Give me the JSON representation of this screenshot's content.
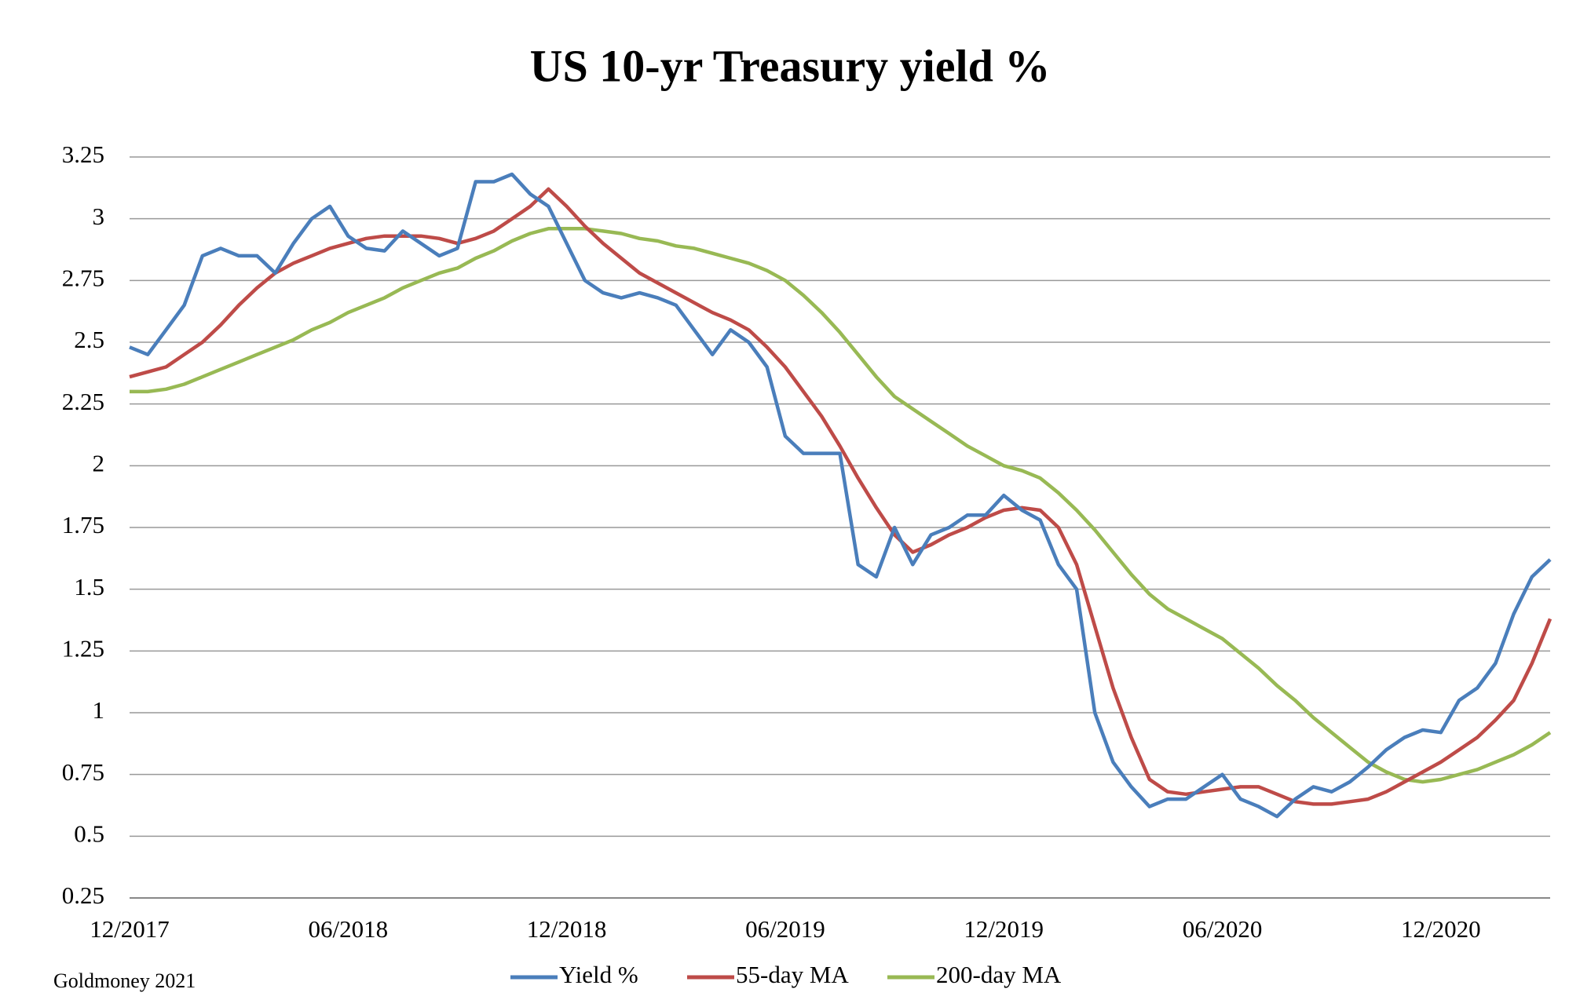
{
  "chart_data": {
    "type": "line",
    "title": "US 10-yr Treasury yield %",
    "source": "Goldmoney 2021",
    "categories": [
      "12/2017",
      null,
      null,
      null,
      null,
      null,
      null,
      null,
      null,
      null,
      null,
      null,
      "06/2018",
      null,
      null,
      null,
      null,
      null,
      null,
      null,
      null,
      null,
      null,
      null,
      "12/2018",
      null,
      null,
      null,
      null,
      null,
      null,
      null,
      null,
      null,
      null,
      null,
      "06/2019",
      null,
      null,
      null,
      null,
      null,
      null,
      null,
      null,
      null,
      null,
      null,
      "12/2019",
      null,
      null,
      null,
      null,
      null,
      null,
      null,
      null,
      null,
      null,
      null,
      "06/2020",
      null,
      null,
      null,
      null,
      null,
      null,
      null,
      null,
      null,
      null,
      null,
      "12/2020",
      null,
      null,
      null,
      null,
      null,
      null
    ],
    "series": [
      {
        "name": "Yield %",
        "color": "#4a7ebb",
        "values": [
          2.48,
          2.45,
          2.55,
          2.65,
          2.85,
          2.88,
          2.85,
          2.85,
          2.78,
          2.9,
          3.0,
          3.05,
          2.93,
          2.88,
          2.87,
          2.95,
          2.9,
          2.85,
          2.88,
          3.15,
          3.15,
          3.18,
          3.1,
          3.05,
          2.9,
          2.75,
          2.7,
          2.68,
          2.7,
          2.68,
          2.65,
          2.55,
          2.45,
          2.55,
          2.5,
          2.4,
          2.12,
          2.05,
          2.05,
          2.05,
          1.6,
          1.55,
          1.75,
          1.6,
          1.72,
          1.75,
          1.8,
          1.8,
          1.88,
          1.82,
          1.78,
          1.6,
          1.5,
          1.0,
          0.8,
          0.7,
          0.62,
          0.65,
          0.65,
          0.7,
          0.75,
          0.65,
          0.62,
          0.58,
          0.65,
          0.7,
          0.68,
          0.72,
          0.78,
          0.85,
          0.9,
          0.93,
          0.92,
          1.05,
          1.1,
          1.2,
          1.4,
          1.55,
          1.62
        ]
      },
      {
        "name": "55-day MA",
        "color": "#be4b48",
        "values": [
          2.36,
          2.38,
          2.4,
          2.45,
          2.5,
          2.57,
          2.65,
          2.72,
          2.78,
          2.82,
          2.85,
          2.88,
          2.9,
          2.92,
          2.93,
          2.93,
          2.93,
          2.92,
          2.9,
          2.92,
          2.95,
          3.0,
          3.05,
          3.12,
          3.05,
          2.97,
          2.9,
          2.84,
          2.78,
          2.74,
          2.7,
          2.66,
          2.62,
          2.59,
          2.55,
          2.48,
          2.4,
          2.3,
          2.2,
          2.08,
          1.95,
          1.83,
          1.72,
          1.65,
          1.68,
          1.72,
          1.75,
          1.79,
          1.82,
          1.83,
          1.82,
          1.75,
          1.6,
          1.35,
          1.1,
          0.9,
          0.73,
          0.68,
          0.67,
          0.68,
          0.69,
          0.7,
          0.7,
          0.67,
          0.64,
          0.63,
          0.63,
          0.64,
          0.65,
          0.68,
          0.72,
          0.76,
          0.8,
          0.85,
          0.9,
          0.97,
          1.05,
          1.2,
          1.38
        ]
      },
      {
        "name": "200-day MA",
        "color": "#98b954",
        "values": [
          2.3,
          2.3,
          2.31,
          2.33,
          2.36,
          2.39,
          2.42,
          2.45,
          2.48,
          2.51,
          2.55,
          2.58,
          2.62,
          2.65,
          2.68,
          2.72,
          2.75,
          2.78,
          2.8,
          2.84,
          2.87,
          2.91,
          2.94,
          2.96,
          2.96,
          2.96,
          2.95,
          2.94,
          2.92,
          2.91,
          2.89,
          2.88,
          2.86,
          2.84,
          2.82,
          2.79,
          2.75,
          2.69,
          2.62,
          2.54,
          2.45,
          2.36,
          2.28,
          2.23,
          2.18,
          2.13,
          2.08,
          2.04,
          2.0,
          1.98,
          1.95,
          1.89,
          1.82,
          1.74,
          1.65,
          1.56,
          1.48,
          1.42,
          1.38,
          1.34,
          1.3,
          1.24,
          1.18,
          1.11,
          1.05,
          0.98,
          0.92,
          0.86,
          0.8,
          0.76,
          0.73,
          0.72,
          0.73,
          0.75,
          0.77,
          0.8,
          0.83,
          0.87,
          0.92
        ]
      }
    ],
    "ylim": [
      0.25,
      3.25
    ],
    "yticks": [
      0.25,
      0.5,
      0.75,
      1,
      1.25,
      1.5,
      1.75,
      2,
      2.25,
      2.5,
      2.75,
      3,
      3.25
    ],
    "grid": true,
    "legend": "bottom"
  }
}
